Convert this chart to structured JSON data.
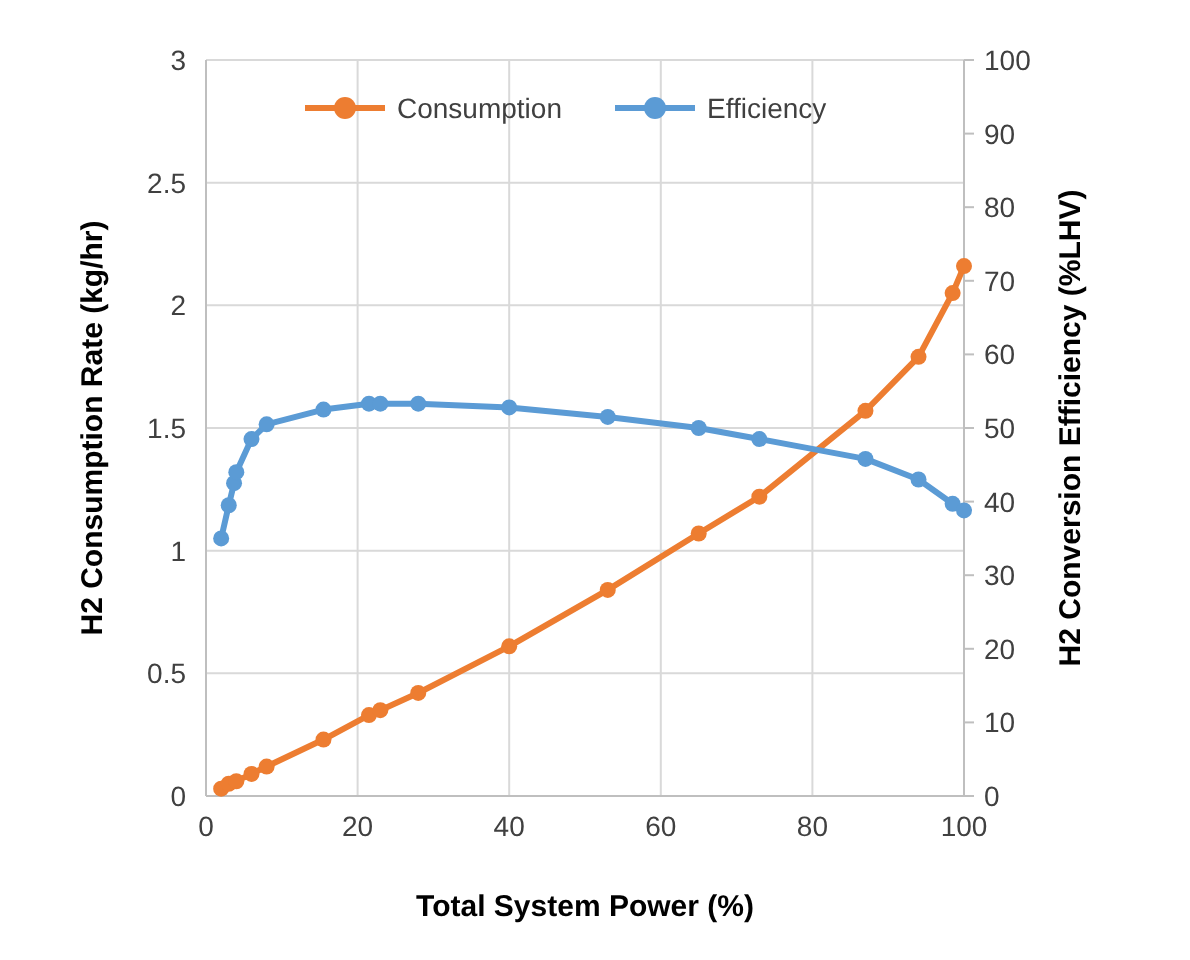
{
  "chart_data": {
    "type": "line",
    "xlabel": "Total System Power (%)",
    "ylabel": "H2 Consumption Rate (kg/hr)",
    "y2label": "H2 Conversion Efficiency (%LHV)",
    "xlim": [
      0,
      100
    ],
    "xticks": [
      0,
      20,
      40,
      60,
      80,
      100
    ],
    "ylim": [
      0,
      3
    ],
    "yticks": [
      0,
      0.5,
      1,
      1.5,
      2,
      2.5,
      3
    ],
    "y2lim": [
      0,
      100
    ],
    "y2ticks": [
      0,
      10,
      20,
      30,
      40,
      50,
      60,
      70,
      80,
      90,
      100
    ],
    "grid": true,
    "legend": "top",
    "marker": "circle",
    "line_style": "solid",
    "series": [
      {
        "name": "Consumption",
        "color": "#ed7d31",
        "x": [
          2,
          3,
          4,
          6,
          8,
          15.5,
          21.5,
          23,
          28,
          40,
          53,
          65,
          73,
          87,
          94,
          98.5,
          100
        ],
        "values": [
          0.03,
          0.05,
          0.06,
          0.09,
          0.12,
          0.23,
          0.33,
          0.35,
          0.42,
          0.61,
          0.84,
          1.07,
          1.22,
          1.57,
          1.79,
          2.05,
          2.16
        ]
      },
      {
        "name": "Efficiency",
        "color": "#5b9bd5",
        "axis": "y2",
        "x": [
          2,
          3,
          3.7,
          4,
          6,
          8,
          15.5,
          21.5,
          23,
          28,
          40,
          53,
          65,
          73,
          87,
          94,
          98.5,
          100
        ],
        "values": [
          35,
          39.5,
          42.5,
          44,
          48.5,
          50.5,
          52.5,
          53.3,
          53.3,
          53.3,
          52.8,
          51.5,
          50,
          48.5,
          45.8,
          43,
          39.7,
          38.8
        ]
      }
    ]
  }
}
